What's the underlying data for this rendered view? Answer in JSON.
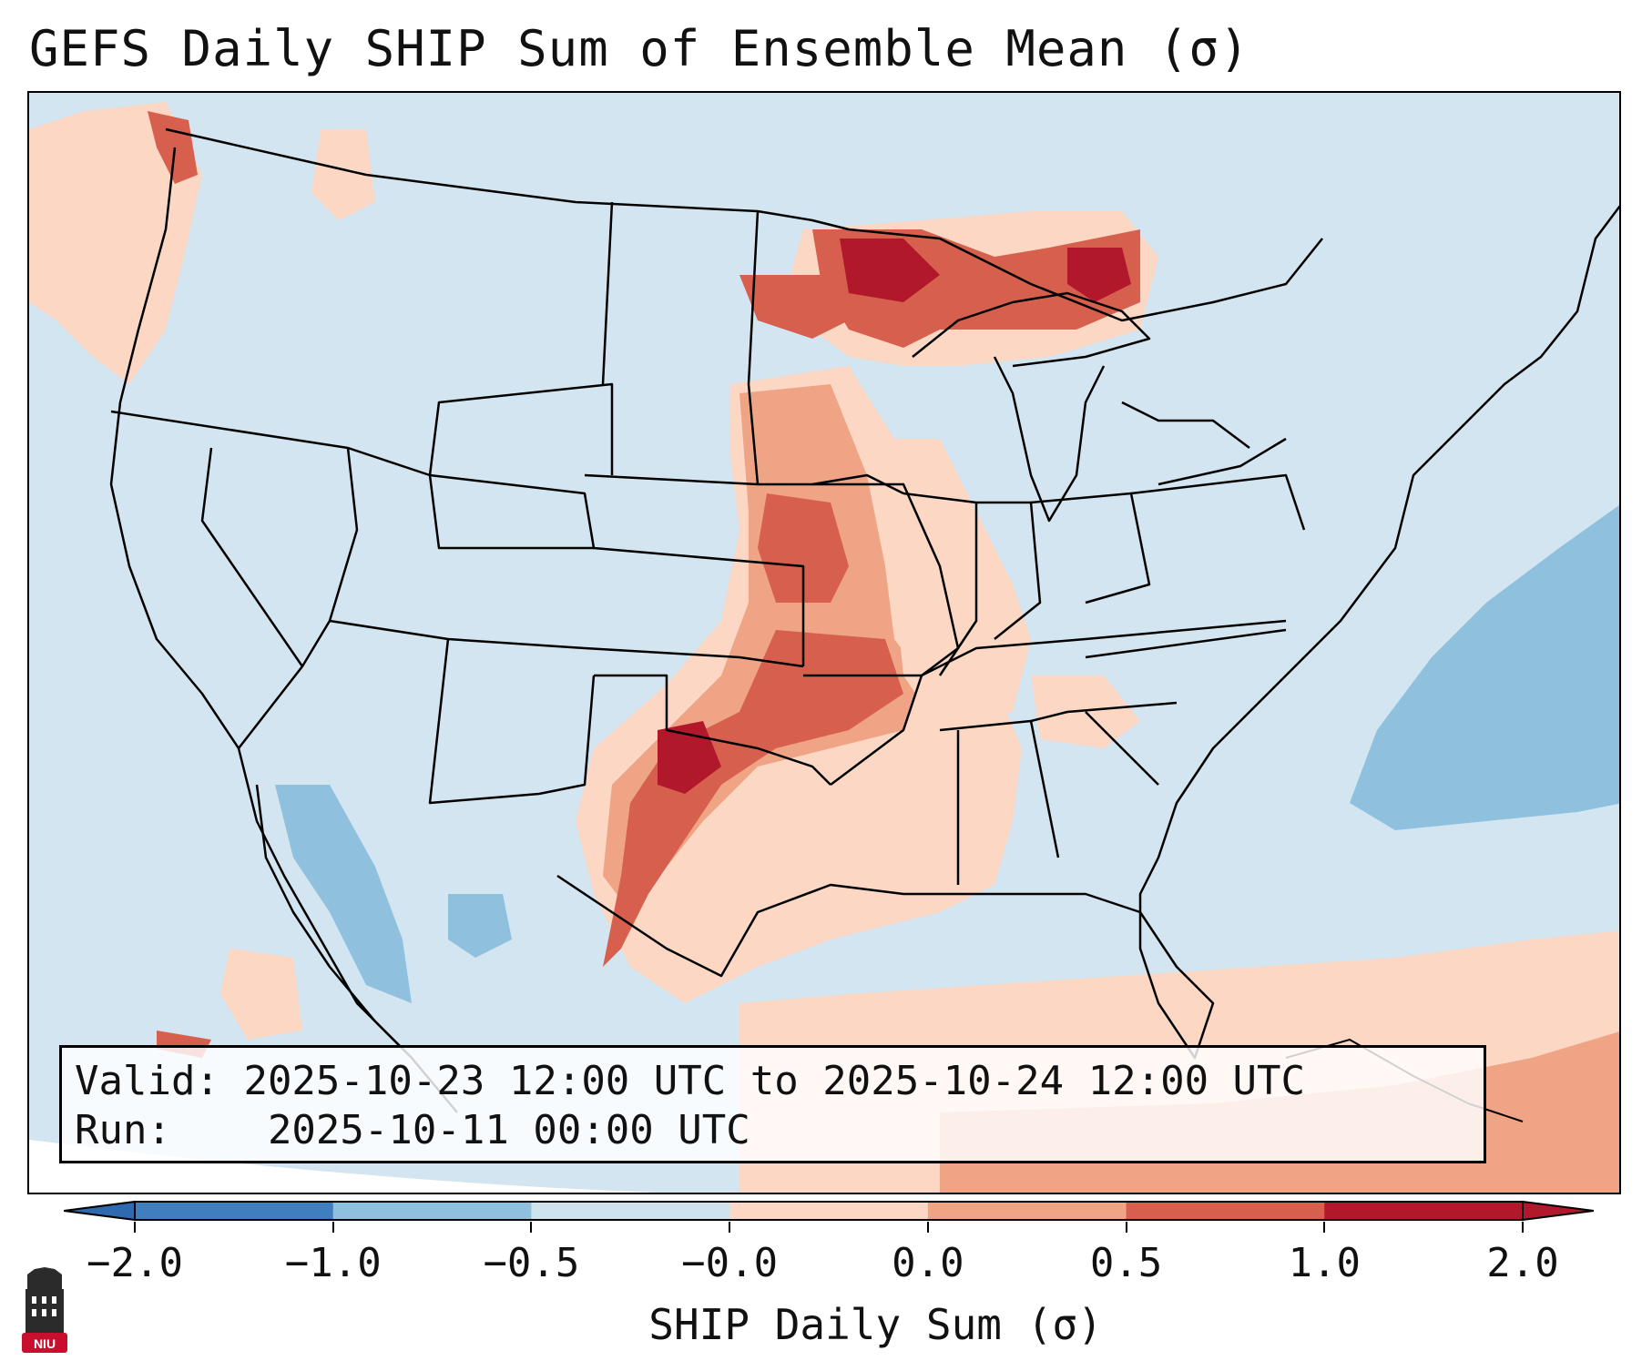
{
  "title": "GEFS Daily SHIP Sum of Ensemble Mean (σ)",
  "info": {
    "valid_label": "Valid:",
    "valid_value": "2025-10-23 12:00 UTC to 2025-10-24 12:00 UTC",
    "run_label": "Run:",
    "run_value": "2025-10-11 00:00 UTC"
  },
  "colorbar": {
    "label": "SHIP Daily Sum (σ)",
    "ticks": [
      "−2.0",
      "−1.0",
      "−0.5",
      "−0.0",
      "0.0",
      "0.5",
      "1.0",
      "2.0"
    ],
    "colors": [
      "#3f7fbf",
      "#8fc1de",
      "#cfe3ef",
      "#fbd7c4",
      "#efa486",
      "#d6604d",
      "#b2182b"
    ],
    "extend_low_color": "#2f6ab0",
    "extend_high_color": "#b2182b"
  },
  "map": {
    "background_color": "#d2e5f0",
    "boundary_color": "#000000"
  },
  "logo": {
    "text": "NIU",
    "color": "#c8102e"
  }
}
